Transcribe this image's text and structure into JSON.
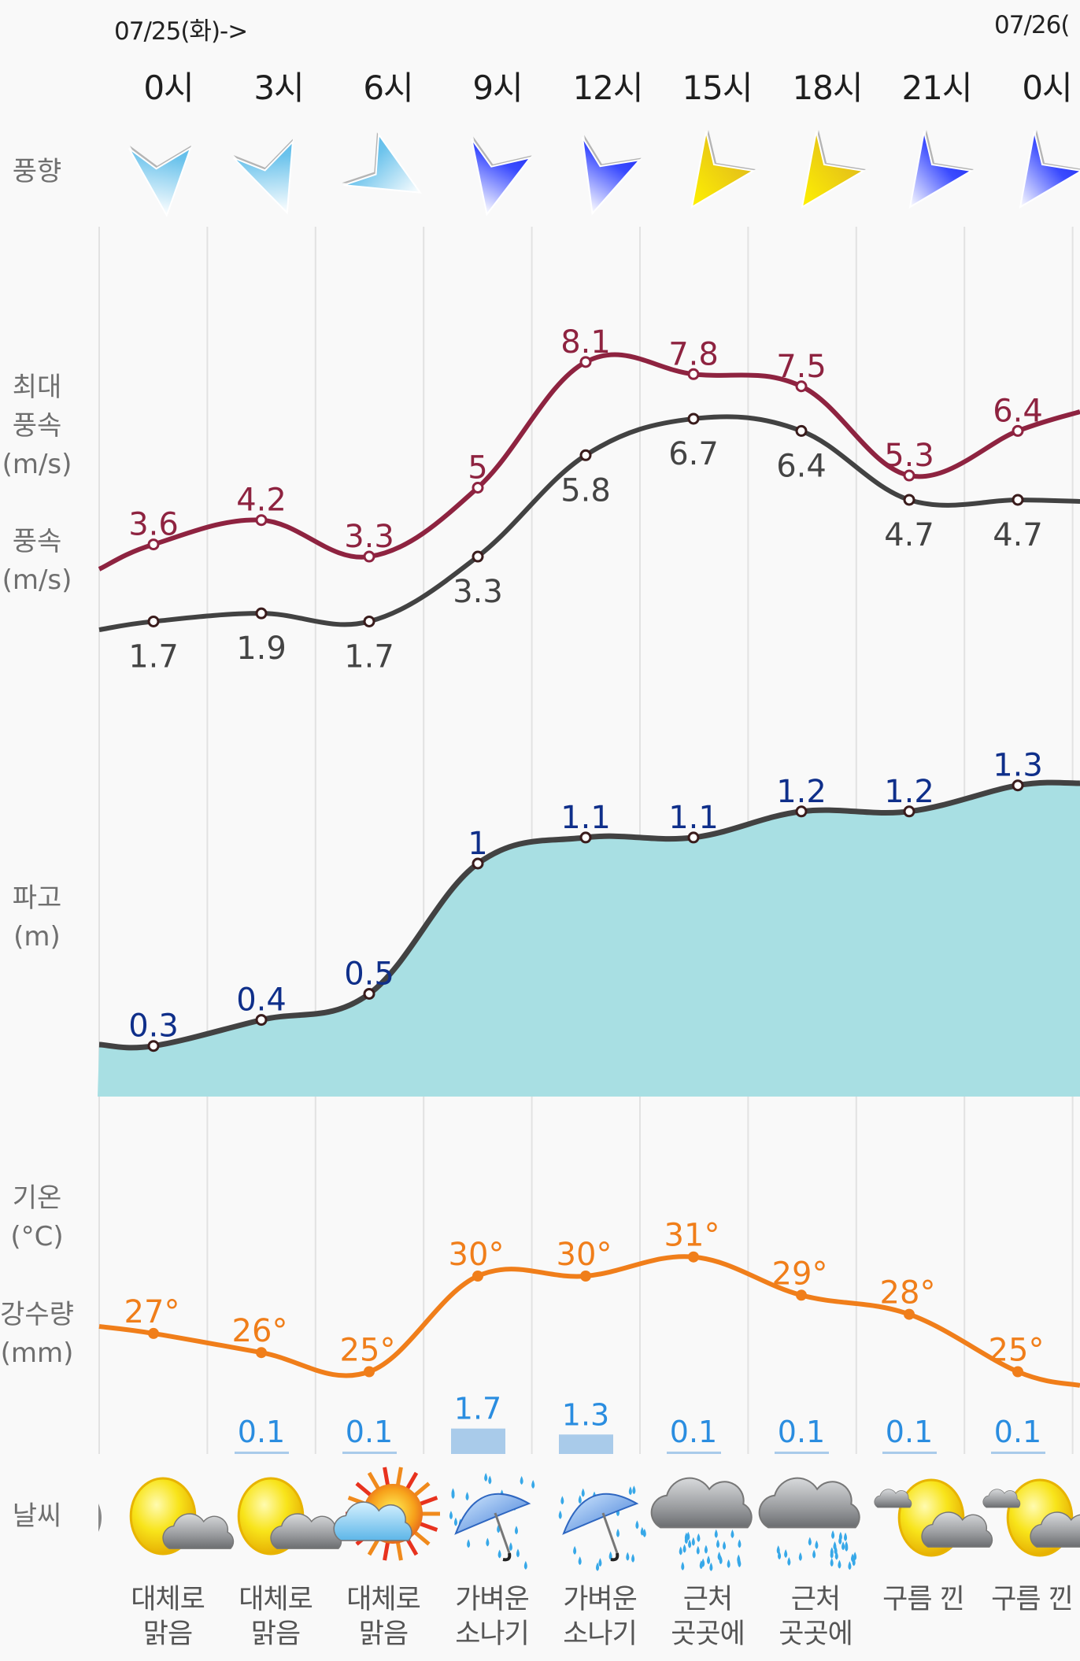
{
  "header": {
    "date_start": "07/25(화)->",
    "date_next": "07/26("
  },
  "hours": [
    "0시",
    "3시",
    "6시",
    "9시",
    "12시",
    "15시",
    "18시",
    "21시",
    "0시"
  ],
  "side_labels": {
    "wind_dir": "풍향",
    "gust_line1": "최대",
    "gust_line2": "풍속",
    "gust_unit": "(m/s)",
    "wind_line1": "풍속",
    "wind_unit": "(m/s)",
    "wave_line1": "파고",
    "wave_unit": "(m)",
    "temp_line1": "기온",
    "temp_unit": "(°C)",
    "rain_line1": "강수량",
    "rain_unit": "(mm)",
    "weather": "날씨"
  },
  "colors": {
    "gust": "#8e2340",
    "wind": "#424242",
    "wave_line": "#424242",
    "wave_fill": "#a8dfe3",
    "wave_label": "#0f2f8a",
    "temp": "#f07e1a",
    "rain_bar": "#a9cbea",
    "rain_label": "#2a8de0",
    "grid": "#e2e2e2"
  },
  "wind_direction": [
    {
      "color": "light-blue",
      "rotation": -40
    },
    {
      "color": "light-blue",
      "rotation": -55
    },
    {
      "color": "light-blue",
      "rotation": -95
    },
    {
      "color": "blue",
      "rotation": -22
    },
    {
      "color": "blue",
      "rotation": -18
    },
    {
      "color": "yellow",
      "rotation": 0
    },
    {
      "color": "yellow",
      "rotation": 0
    },
    {
      "color": "blue",
      "rotation": 0
    },
    {
      "color": "blue",
      "rotation": 0
    }
  ],
  "chart_data": [
    {
      "type": "line",
      "title": "최대 풍속 / 풍속",
      "ylabel": "(m/s)",
      "categories": [
        "0시",
        "3시",
        "6시",
        "9시",
        "12시",
        "15시",
        "18시",
        "21시",
        "0시"
      ],
      "series": [
        {
          "name": "최대 풍속",
          "values": [
            3.6,
            4.2,
            3.3,
            5,
            8.1,
            7.8,
            7.5,
            5.3,
            6.4
          ],
          "labels": [
            "3.6",
            "4.2",
            "3.3",
            "5",
            "8.1",
            "7.8",
            "7.5",
            "5.3",
            "6.4"
          ]
        },
        {
          "name": "풍속",
          "values": [
            1.7,
            1.9,
            1.7,
            3.3,
            5.8,
            6.7,
            6.4,
            4.7,
            4.7
          ],
          "labels": [
            "1.7",
            "1.9",
            "1.7",
            "3.3",
            "5.8",
            "6.7",
            "6.4",
            "4.7",
            "4.7"
          ]
        }
      ]
    },
    {
      "type": "area",
      "title": "파고",
      "ylabel": "(m)",
      "categories": [
        "0시",
        "3시",
        "6시",
        "9시",
        "12시",
        "15시",
        "18시",
        "21시",
        "0시"
      ],
      "series": [
        {
          "name": "파고",
          "values": [
            0.3,
            0.4,
            0.5,
            1,
            1.1,
            1.1,
            1.2,
            1.2,
            1.3
          ],
          "labels": [
            "0.3",
            "0.4",
            "0.5",
            "1",
            "1.1",
            "1.1",
            "1.2",
            "1.2",
            "1.3"
          ]
        }
      ]
    },
    {
      "type": "line",
      "title": "기온",
      "ylabel": "(°C)",
      "categories": [
        "0시",
        "3시",
        "6시",
        "9시",
        "12시",
        "15시",
        "18시",
        "21시",
        "0시"
      ],
      "series": [
        {
          "name": "기온",
          "values": [
            27,
            26,
            25,
            30,
            30,
            31,
            29,
            28,
            25
          ],
          "labels": [
            "27°",
            "26°",
            "25°",
            "30°",
            "30°",
            "31°",
            "29°",
            "28°",
            "25°"
          ]
        }
      ]
    },
    {
      "type": "bar",
      "title": "강수량",
      "ylabel": "(mm)",
      "categories": [
        "0시",
        "3시",
        "6시",
        "9시",
        "12시",
        "15시",
        "18시",
        "21시",
        "0시"
      ],
      "series": [
        {
          "name": "강수량",
          "values": [
            null,
            0.1,
            0.1,
            1.7,
            1.3,
            0.1,
            0.1,
            0.1,
            0.1
          ],
          "labels": [
            "",
            "0.1",
            "0.1",
            "1.7",
            "1.3",
            "0.1",
            "0.1",
            "0.1",
            "0.1"
          ]
        }
      ]
    }
  ],
  "weather": [
    {
      "icon": "mostly-clear-icon",
      "label1": "대체로",
      "label2": "맑음"
    },
    {
      "icon": "mostly-clear-icon",
      "label1": "대체로",
      "label2": "맑음"
    },
    {
      "icon": "sun-cloud-icon",
      "label1": "대체로",
      "label2": "맑음"
    },
    {
      "icon": "umbrella-rain-icon",
      "label1": "가벼운",
      "label2": "소나기"
    },
    {
      "icon": "umbrella-rain-icon",
      "label1": "가벼운",
      "label2": "소나기"
    },
    {
      "icon": "rain-cloud-icon",
      "label1": "근처",
      "label2": "곳곳에"
    },
    {
      "icon": "rain-cloud-icon",
      "label1": "근처",
      "label2": "곳곳에"
    },
    {
      "icon": "cloudy-sun-icon",
      "label1": "구름 낀",
      "label2": ""
    },
    {
      "icon": "cloudy-sun-icon",
      "label1": "구름 낀",
      "label2": ""
    }
  ]
}
